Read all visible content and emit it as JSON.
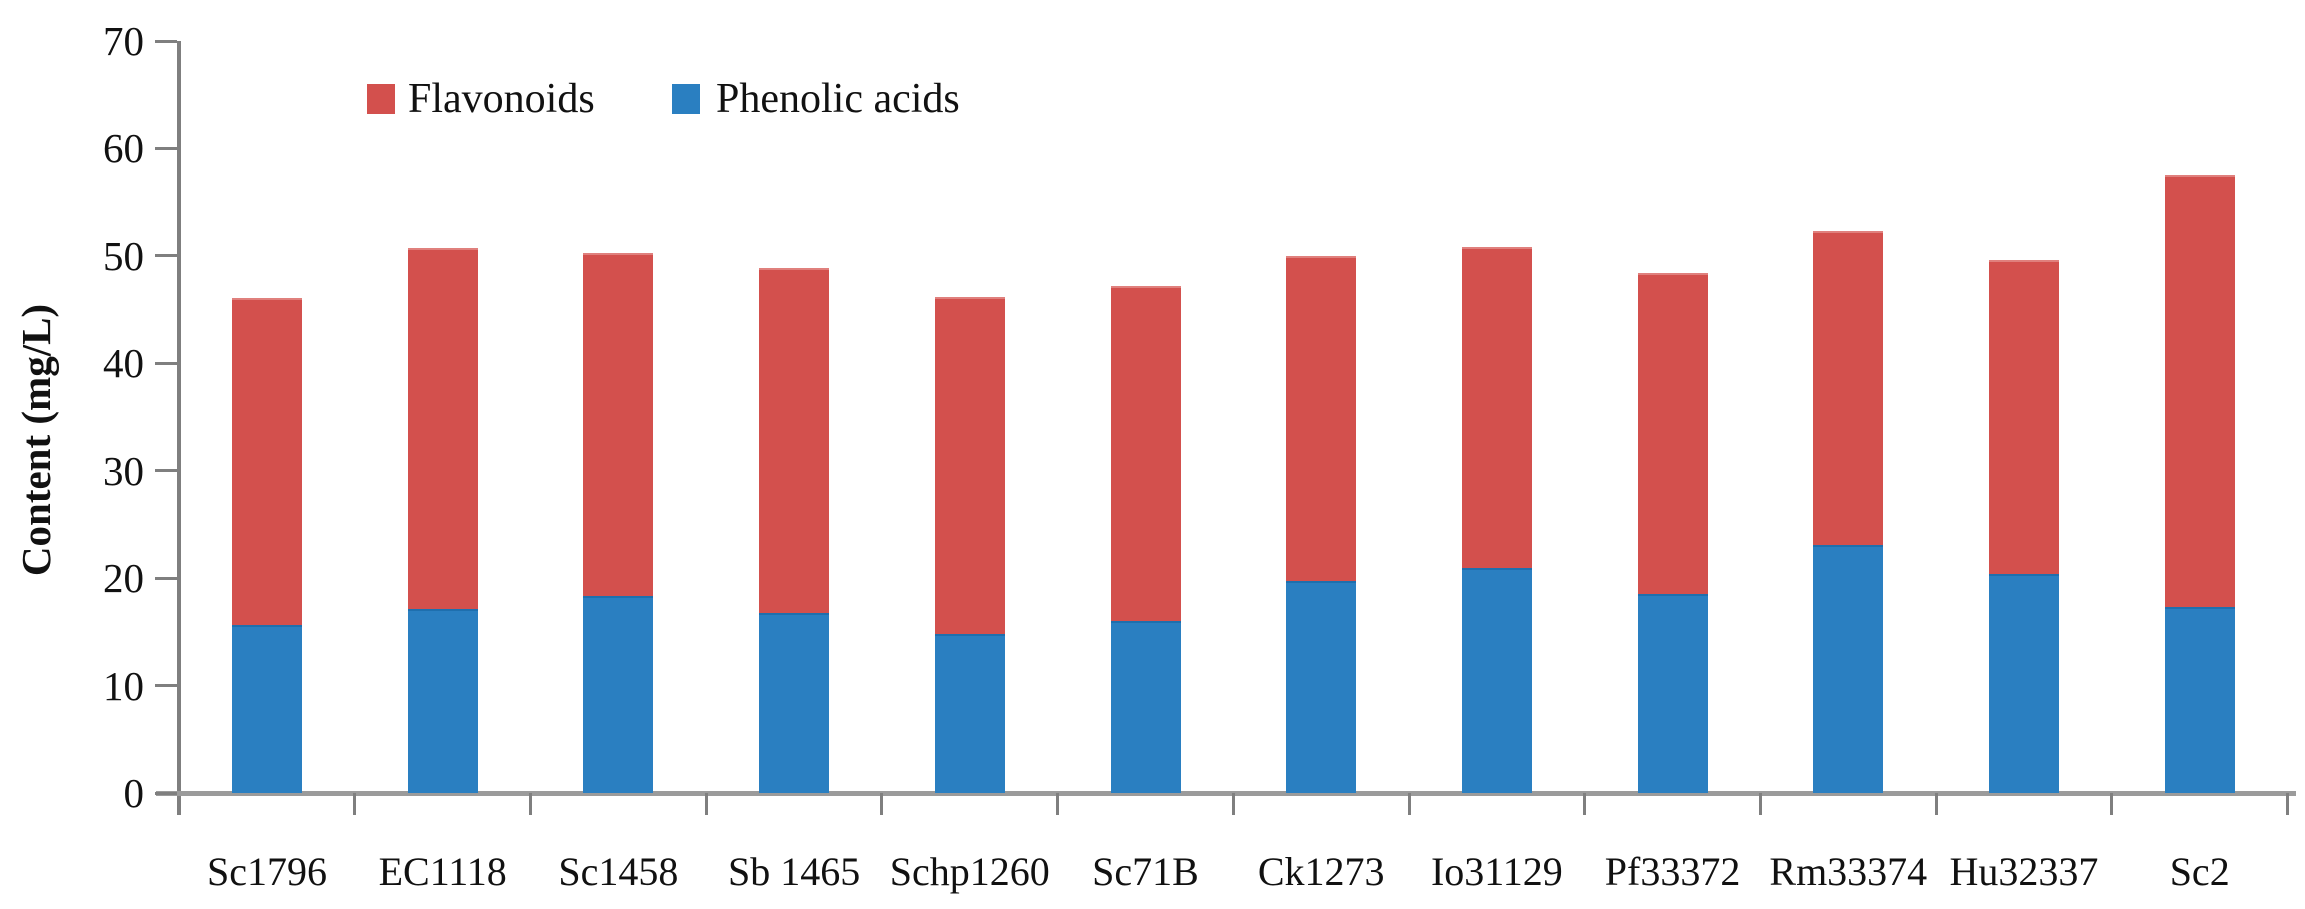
{
  "chart_data": {
    "type": "bar",
    "stacked": true,
    "title": "",
    "xlabel": "",
    "ylabel": "Content (mg/L)",
    "ylim": [
      0,
      70
    ],
    "yticks": [
      0,
      10,
      20,
      30,
      40,
      50,
      60,
      70
    ],
    "grid": false,
    "legend_position": "top",
    "categories": [
      "Sc1796",
      "EC1118",
      "Sc1458",
      "Sb 1465",
      "Schp1260",
      "Sc71B",
      "Ck1273",
      "Io31129",
      "Pf33372",
      "Rm33374",
      "Hu32337",
      "Sc2"
    ],
    "series": [
      {
        "name": "Phenolic acids",
        "color": "#2A7FC1",
        "stack_order": "bottom",
        "values": [
          15.6,
          17.1,
          18.3,
          16.8,
          14.8,
          16.0,
          19.7,
          20.9,
          18.5,
          23.1,
          20.4,
          17.3
        ]
      },
      {
        "name": "Flavonoids",
        "color": "#D3504D",
        "stack_order": "top",
        "values": [
          30.5,
          33.6,
          32.0,
          32.1,
          31.4,
          31.2,
          30.3,
          29.9,
          29.9,
          29.2,
          29.2,
          40.2
        ]
      }
    ],
    "stack_totals": [
      46.1,
      50.7,
      50.3,
      48.9,
      46.2,
      47.2,
      50.0,
      50.8,
      48.4,
      52.3,
      49.6,
      57.5
    ]
  },
  "legend": {
    "flavonoids_label": "Flavonoids",
    "phenolic_label": "Phenolic acids"
  },
  "colors": {
    "flavonoids": "#D3504D",
    "phenolic_acids": "#2A7FC1",
    "axis_line": "#7f7f7f",
    "baseline": "#9b9b9b",
    "text": "#111111",
    "background": "#ffffff"
  }
}
